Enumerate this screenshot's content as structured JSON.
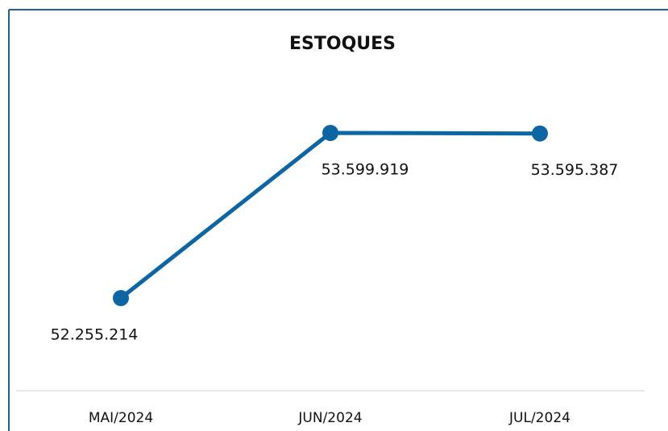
{
  "chart_data": {
    "type": "line",
    "title": "ESTOQUES",
    "categories": [
      "MAI/2024",
      "JUN/2024",
      "JUL/2024"
    ],
    "series": [
      {
        "name": "ESTOQUES",
        "color": "#0b66a3",
        "values": [
          52255214,
          53599919,
          53595387
        ],
        "value_labels": [
          "52.255.214",
          "53.599.919",
          "53.595.387"
        ]
      }
    ]
  }
}
